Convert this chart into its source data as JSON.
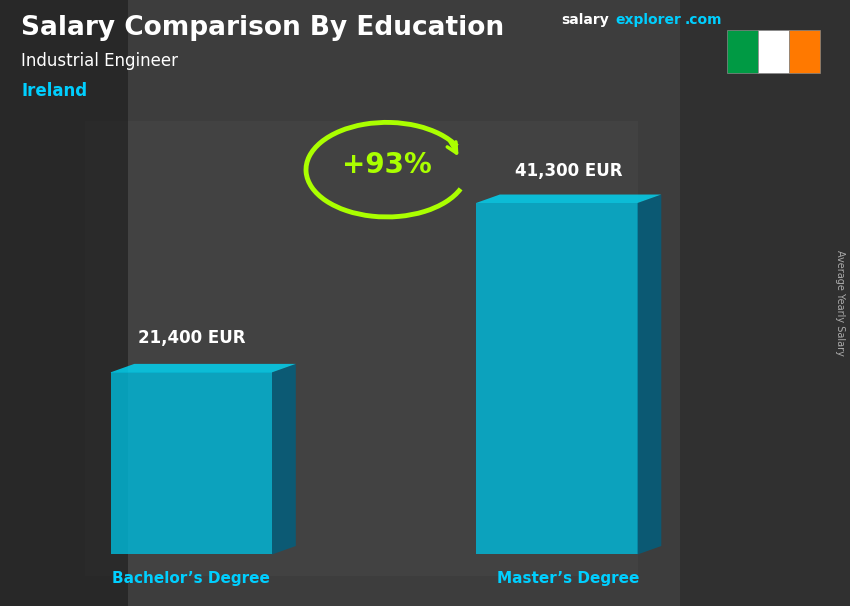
{
  "title": "Salary Comparison By Education",
  "subtitle": "Industrial Engineer",
  "country": "Ireland",
  "bar1_label": "Bachelor’s Degree",
  "bar2_label": "Master’s Degree",
  "bar1_value": 21400,
  "bar2_value": 41300,
  "bar1_display": "21,400 EUR",
  "bar2_display": "41,300 EUR",
  "percent_change": "+93%",
  "bg_color": "#3a3a3a",
  "title_color": "#ffffff",
  "subtitle_color": "#ffffff",
  "country_color": "#00cfff",
  "label_color": "#00cfff",
  "value_color": "#ffffff",
  "percent_color": "#aaff00",
  "right_label": "Average Yearly Salary",
  "brand_salary_color": "#ffffff",
  "brand_explorer_color": "#00cfff",
  "bar_face_color": "#00b8d9",
  "bar_side_color": "#006080",
  "bar_top_color": "#00d8f8",
  "ireland_flag_green": "#009A44",
  "ireland_flag_white": "#FFFFFF",
  "ireland_flag_orange": "#FF7900"
}
